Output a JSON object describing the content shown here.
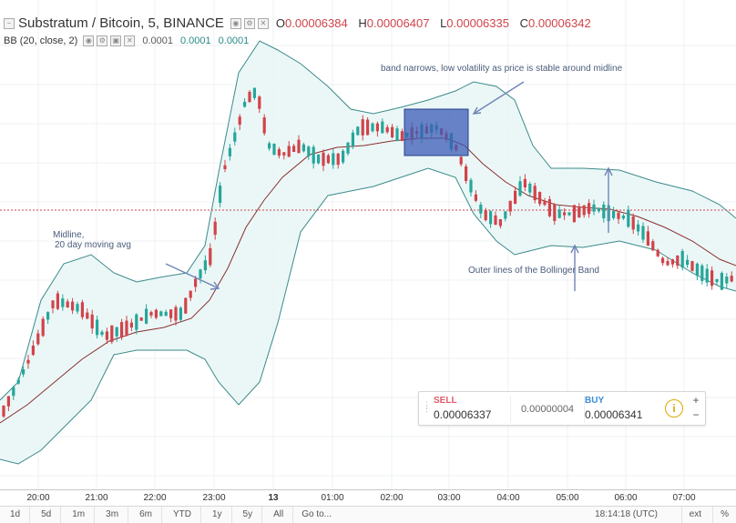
{
  "header": {
    "symbol": "Substratum / Bitcoin, 5, BINANCE",
    "o_label": "O",
    "o_value": "0.00006384",
    "h_label": "H",
    "h_value": "0.00006407",
    "l_label": "L",
    "l_value": "0.00006335",
    "c_label": "C",
    "c_value": "0.00006342"
  },
  "indicator": {
    "name": "BB (20, close, 2)",
    "v1": "0.0001",
    "v2": "0.0001",
    "v3": "0.0001"
  },
  "annotations": {
    "midline_1": "Midline,",
    "midline_2": "20 day moving avg",
    "band_narrows": "band narrows, low volatility as price is stable around midline",
    "outer_lines": "Outer lines of the Bollinger Band"
  },
  "trade_panel": {
    "sell_label": "SELL",
    "sell_price": "0.00006337",
    "spread": "0.00000004",
    "buy_label": "BUY",
    "buy_price": "0.00006341",
    "info_icon": "i",
    "plus": "+",
    "minus": "−"
  },
  "time_axis": [
    "20:00",
    "21:00",
    "22:00",
    "23:00",
    "13",
    "01:00",
    "02:00",
    "03:00",
    "04:00",
    "05:00",
    "06:00",
    "07:00"
  ],
  "bottom_bar": {
    "ranges": [
      "1d",
      "5d",
      "1m",
      "3m",
      "6m",
      "YTD",
      "1y",
      "5y",
      "All"
    ],
    "goto": "Go to...",
    "clock": "18:14:18 (UTC)",
    "ext": "ext",
    "percent": "%"
  },
  "colors": {
    "up": "#26a69a",
    "down": "#d1434a",
    "band": "#3d8a8a",
    "band_fill": "#e6f5f5",
    "midline": "#8b2f2f",
    "highlight": "#3b5bb5"
  },
  "icons": [
    "collapse-icon",
    "eye-icon",
    "settings-icon",
    "close-icon",
    "arrow-annotation-icon",
    "info-icon"
  ]
}
